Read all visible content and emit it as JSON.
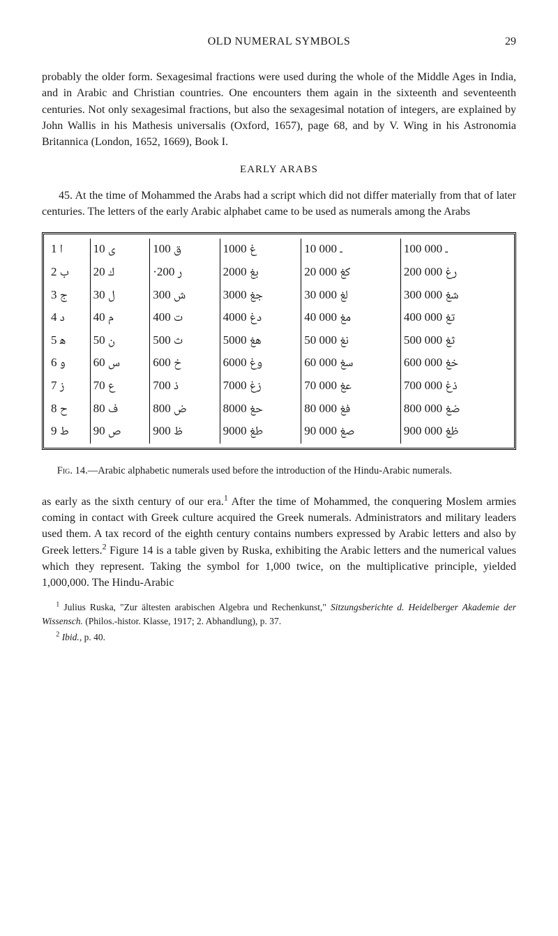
{
  "header": {
    "running_title": "OLD NUMERAL SYMBOLS",
    "page_number": "29"
  },
  "para1": "probably the older form. Sexagesimal fractions were used during the whole of the Middle Ages in India, and in Arabic and Christian countries. One encounters them again in the sixteenth and seventeenth centuries. Not only sexagesimal fractions, but also the sexagesimal notation of integers, are explained by John Wallis in his Mathesis universalis (Oxford, 1657), page 68, and by V. Wing in his Astronomia Britannica (London, 1652, 1669), Book I.",
  "section_head": "EARLY ARABS",
  "para45": "45. At the time of Mohammed the Arabs had a script which did not differ materially from that of later centuries. The letters of the early Arabic alphabet came to be used as numerals among the Arabs",
  "table": {
    "rows": [
      [
        "1 ا",
        "10 ى",
        "100 ق",
        "1000 غ",
        "10 000 ـ",
        "100 000 ـ"
      ],
      [
        "2 ب",
        "20 ك",
        "·200 ر",
        "2000 بغ",
        "20 000 كغ",
        "200 000 رغ"
      ],
      [
        "3 ج",
        "30 ل",
        "300 ش",
        "3000 جغ",
        "30 000 لغ",
        "300 000 شغ"
      ],
      [
        "4 د",
        "40 م",
        "400 ت",
        "4000 دغ",
        "40 000 مغ",
        "400 000 تغ"
      ],
      [
        "5 ﻫ",
        "50 ن",
        "500 ث",
        "5000 هغ",
        "50 000 نغ",
        "500 000 ثغ"
      ],
      [
        "6 و",
        "60 س",
        "600 خ",
        "6000 وغ",
        "60 000 سغ",
        "600 000 خغ"
      ],
      [
        "7 ز",
        "70 ع",
        "700 ذ",
        "7000 زغ",
        "70 000 عغ",
        "700 000 ذغ"
      ],
      [
        "8 ح",
        "80 ف",
        "800 ض",
        "8000 حغ",
        "80 000 فغ",
        "800 000 ضغ"
      ],
      [
        "9 ط",
        "90 ص",
        "900 ظ",
        "9000 طغ",
        "90 000 صغ",
        "900 000 ظغ"
      ]
    ]
  },
  "caption": "Fig. 14.—Arabic alphabetic numerals used before the introduction of the Hindu-Arabic numerals.",
  "para2_a": "as early as the sixth century of our era.",
  "para2_b": " After the time of Mohammed, the conquering Moslem armies coming in contact with Greek culture acquired the Greek numerals. Administrators and military leaders used them. A tax record of the eighth century contains numbers expressed by Arabic letters and also by Greek letters.",
  "para2_c": " Figure 14 is a table given by Ruska, exhibiting the Arabic letters and the numerical values which they represent. Taking the symbol for 1,000 twice, on the multiplicative principle, yielded 1,000,000. The Hindu-Arabic",
  "fn1_a": "Julius Ruska, \"Zur ältesten arabischen Algebra und Rechenkunst,\" ",
  "fn1_b": "Sitzungsberichte d. Heidelberger Akademie der Wissensch.",
  "fn1_c": " (Philos.-histor. Klasse, 1917; 2. Abhandlung), p. 37.",
  "fn2_a": "Ibid.",
  "fn2_b": ", p. 40."
}
